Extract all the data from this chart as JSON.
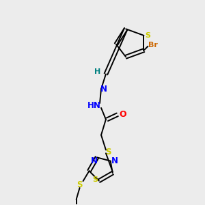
{
  "bg_color": "#ececec",
  "bond_color": "#000000",
  "colors": {
    "S": "#cccc00",
    "N": "#0000ff",
    "O": "#ff0000",
    "Br": "#cc6600",
    "H": "#008080",
    "C": "#000000"
  },
  "figsize": [
    3.0,
    3.0
  ],
  "dpi": 100
}
